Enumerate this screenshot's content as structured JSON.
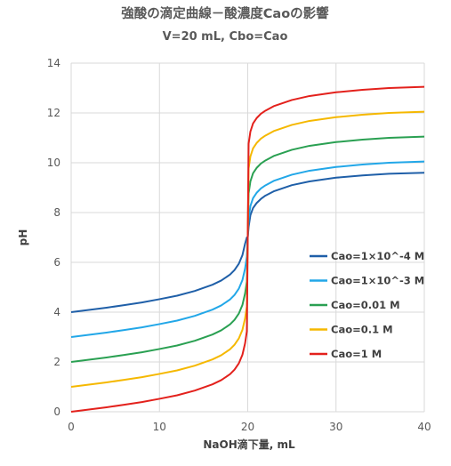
{
  "chart_data": {
    "type": "line",
    "title": "強酸の滴定曲線－酸濃度Caoの影響",
    "subtitle": "V=20 mL, Cbo=Cao",
    "xlabel": "NaOH滴下量, mL",
    "ylabel": "pH",
    "xlim": [
      0,
      40
    ],
    "ylim": [
      0,
      14
    ],
    "xticks": [
      0,
      10,
      20,
      30,
      40
    ],
    "yticks": [
      0,
      2,
      4,
      6,
      8,
      10,
      12,
      14
    ],
    "grid": true,
    "legend_position": "right",
    "series": [
      {
        "name": "Cao=1×10^-4 M",
        "color": "#1f5fa8",
        "x": [
          0,
          2,
          4,
          6,
          8,
          10,
          12,
          14,
          16,
          17,
          18,
          18.5,
          19,
          19.4,
          19.7,
          19.9,
          20,
          20.1,
          20.3,
          20.6,
          21,
          21.5,
          22,
          23,
          25,
          27,
          30,
          33,
          36,
          40
        ],
        "y": [
          4.0,
          4.09,
          4.18,
          4.28,
          4.39,
          4.52,
          4.66,
          4.85,
          5.1,
          5.27,
          5.51,
          5.69,
          5.95,
          6.29,
          6.75,
          7.0,
          7.0,
          7.42,
          7.89,
          8.18,
          8.38,
          8.55,
          8.68,
          8.86,
          9.1,
          9.25,
          9.4,
          9.49,
          9.56,
          9.6
        ]
      },
      {
        "name": "Cao=1×10^-3 M",
        "color": "#22a7e8",
        "x": [
          0,
          2,
          4,
          6,
          8,
          10,
          12,
          14,
          16,
          17,
          18,
          18.5,
          19,
          19.4,
          19.7,
          19.9,
          20,
          20.1,
          20.3,
          20.6,
          21,
          21.5,
          22,
          23,
          25,
          27,
          30,
          33,
          36,
          40
        ],
        "y": [
          3.0,
          3.09,
          3.18,
          3.28,
          3.39,
          3.52,
          3.66,
          3.85,
          4.1,
          4.27,
          4.51,
          4.69,
          4.95,
          5.29,
          5.75,
          6.23,
          7.0,
          7.75,
          8.26,
          8.58,
          8.79,
          8.97,
          9.09,
          9.28,
          9.52,
          9.68,
          9.83,
          9.93,
          10.0,
          10.05
        ]
      },
      {
        "name": "Cao=0.01 M",
        "color": "#2aa052",
        "x": [
          0,
          2,
          4,
          6,
          8,
          10,
          12,
          14,
          16,
          17,
          18,
          18.5,
          19,
          19.4,
          19.7,
          19.9,
          20,
          20.1,
          20.3,
          20.6,
          21,
          21.5,
          22,
          23,
          25,
          27,
          30,
          33,
          36,
          40
        ],
        "y": [
          2.0,
          2.09,
          2.18,
          2.28,
          2.39,
          2.52,
          2.66,
          2.85,
          3.1,
          3.27,
          3.51,
          3.69,
          3.95,
          4.29,
          4.75,
          5.23,
          7.0,
          8.77,
          9.25,
          9.58,
          9.79,
          9.97,
          10.09,
          10.28,
          10.52,
          10.68,
          10.83,
          10.93,
          11.0,
          11.05
        ]
      },
      {
        "name": "Cao=0.1 M",
        "color": "#f5b800",
        "x": [
          0,
          2,
          4,
          6,
          8,
          10,
          12,
          14,
          16,
          17,
          18,
          18.5,
          19,
          19.4,
          19.7,
          19.9,
          20,
          20.1,
          20.3,
          20.6,
          21,
          21.5,
          22,
          23,
          25,
          27,
          30,
          33,
          36,
          40
        ],
        "y": [
          1.0,
          1.09,
          1.18,
          1.28,
          1.39,
          1.52,
          1.66,
          1.85,
          2.1,
          2.27,
          2.51,
          2.69,
          2.95,
          3.29,
          3.75,
          4.23,
          7.0,
          9.77,
          10.25,
          10.58,
          10.79,
          10.97,
          11.09,
          11.28,
          11.52,
          11.68,
          11.83,
          11.93,
          12.0,
          12.05
        ]
      },
      {
        "name": "Cao=1 M",
        "color": "#e3211c",
        "x": [
          0,
          2,
          4,
          6,
          8,
          10,
          12,
          14,
          16,
          17,
          18,
          18.5,
          19,
          19.4,
          19.7,
          19.9,
          20,
          20.1,
          20.3,
          20.6,
          21,
          21.5,
          22,
          23,
          25,
          27,
          30,
          33,
          36,
          40
        ],
        "y": [
          0.0,
          0.09,
          0.18,
          0.28,
          0.39,
          0.52,
          0.66,
          0.85,
          1.1,
          1.27,
          1.51,
          1.69,
          1.95,
          2.29,
          2.75,
          3.23,
          7.0,
          10.77,
          11.25,
          11.58,
          11.79,
          11.97,
          12.09,
          12.28,
          12.52,
          12.68,
          12.83,
          12.93,
          13.0,
          13.05
        ]
      }
    ]
  }
}
